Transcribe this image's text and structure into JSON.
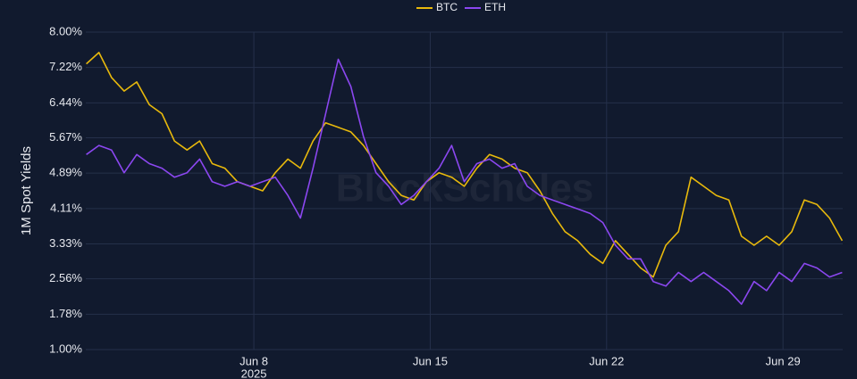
{
  "chart_data": {
    "type": "line",
    "y_axis_label": "1M Spot Yields",
    "watermark": "BlockScholes",
    "x_year_label": "2025",
    "x": [
      1.35,
      1.85,
      2.35,
      2.85,
      3.35,
      3.85,
      4.35,
      4.85,
      5.35,
      5.85,
      6.35,
      6.85,
      7.35,
      7.85,
      8.35,
      8.85,
      9.35,
      9.85,
      10.35,
      10.85,
      11.35,
      11.85,
      12.35,
      12.85,
      13.35,
      13.85,
      14.35,
      14.85,
      15.35,
      15.85,
      16.35,
      16.85,
      17.35,
      17.85,
      18.35,
      18.85,
      19.35,
      19.85,
      20.35,
      20.85,
      21.35,
      21.85,
      22.35,
      22.85,
      23.35,
      23.85,
      24.35,
      24.85,
      25.35,
      25.85,
      26.35,
      26.85,
      27.35,
      27.85,
      28.35,
      28.85,
      29.35,
      29.85,
      30.35,
      30.85,
      31.35
    ],
    "xlim": [
      1.33,
      31.37
    ],
    "xticks": [
      {
        "value": 8,
        "label": "Jun 8"
      },
      {
        "value": 15,
        "label": "Jun 15"
      },
      {
        "value": 22,
        "label": "Jun 22"
      },
      {
        "value": 29,
        "label": "Jun 29"
      }
    ],
    "ylim": [
      1,
      8
    ],
    "yticks": [
      {
        "value": 1,
        "label": "1.00%"
      },
      {
        "value": 1.78,
        "label": "1.78%"
      },
      {
        "value": 2.56,
        "label": "2.56%"
      },
      {
        "value": 3.33,
        "label": "3.33%"
      },
      {
        "value": 4.11,
        "label": "4.11%"
      },
      {
        "value": 4.89,
        "label": "4.89%"
      },
      {
        "value": 5.67,
        "label": "5.67%"
      },
      {
        "value": 6.44,
        "label": "6.44%"
      },
      {
        "value": 7.22,
        "label": "7.22%"
      },
      {
        "value": 8,
        "label": "8.00%"
      }
    ],
    "grid": true,
    "series": [
      {
        "name": "BTC",
        "color": "#e8b90c",
        "values": [
          7.3,
          7.55,
          7.0,
          6.7,
          6.9,
          6.4,
          6.2,
          5.6,
          5.4,
          5.6,
          5.1,
          5.0,
          4.7,
          4.6,
          4.5,
          4.9,
          5.2,
          5.0,
          5.6,
          6.0,
          5.9,
          5.8,
          5.5,
          5.1,
          4.7,
          4.4,
          4.3,
          4.7,
          4.9,
          4.8,
          4.6,
          5.0,
          5.3,
          5.2,
          5.0,
          4.9,
          4.5,
          4.0,
          3.6,
          3.4,
          3.1,
          2.9,
          3.4,
          3.1,
          2.8,
          2.6,
          3.3,
          3.6,
          4.8,
          4.6,
          4.4,
          4.3,
          3.5,
          3.3,
          3.5,
          3.3,
          3.6,
          4.3,
          4.2,
          3.9,
          3.4
        ]
      },
      {
        "name": "ETH",
        "color": "#8b47f0",
        "values": [
          5.3,
          5.5,
          5.4,
          4.9,
          5.3,
          5.1,
          5.0,
          4.8,
          4.9,
          5.2,
          4.7,
          4.6,
          4.7,
          4.6,
          4.7,
          4.8,
          4.4,
          3.9,
          5.0,
          6.2,
          7.4,
          6.8,
          5.7,
          4.9,
          4.6,
          4.2,
          4.4,
          4.7,
          5.0,
          5.5,
          4.7,
          5.1,
          5.2,
          5.0,
          5.1,
          4.6,
          4.4,
          4.3,
          4.2,
          4.1,
          4.0,
          3.8,
          3.3,
          3.0,
          3.0,
          2.5,
          2.4,
          2.7,
          2.5,
          2.7,
          2.5,
          2.3,
          2.0,
          2.5,
          2.3,
          2.7,
          2.5,
          2.9,
          2.8,
          2.6,
          2.7
        ]
      }
    ]
  }
}
